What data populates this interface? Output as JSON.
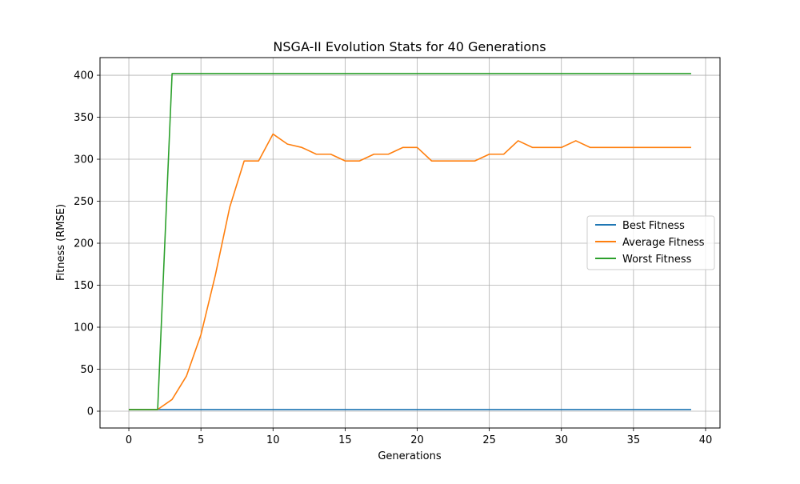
{
  "chart_data": {
    "type": "line",
    "title": "NSGA-II Evolution Stats for 40 Generations",
    "xlabel": "Generations",
    "ylabel": "Fitness (RMSE)",
    "xlim": [
      -2,
      41
    ],
    "ylim": [
      -20,
      421
    ],
    "xticks": [
      0,
      5,
      10,
      15,
      20,
      25,
      30,
      35,
      40
    ],
    "yticks": [
      0,
      50,
      100,
      150,
      200,
      250,
      300,
      350,
      400
    ],
    "grid": true,
    "legend_position": "center-right",
    "x": [
      0,
      1,
      2,
      3,
      4,
      5,
      6,
      7,
      8,
      9,
      10,
      11,
      12,
      13,
      14,
      15,
      16,
      17,
      18,
      19,
      20,
      21,
      22,
      23,
      24,
      25,
      26,
      27,
      28,
      29,
      30,
      31,
      32,
      33,
      34,
      35,
      36,
      37,
      38,
      39
    ],
    "series": [
      {
        "name": "Best Fitness",
        "color": "#1f77b4",
        "values": [
          2,
          2,
          2,
          2,
          2,
          2,
          2,
          2,
          2,
          2,
          2,
          2,
          2,
          2,
          2,
          2,
          2,
          2,
          2,
          2,
          2,
          2,
          2,
          2,
          2,
          2,
          2,
          2,
          2,
          2,
          2,
          2,
          2,
          2,
          2,
          2,
          2,
          2,
          2,
          2
        ]
      },
      {
        "name": "Average Fitness",
        "color": "#ff7f0e",
        "values": [
          2,
          2,
          2,
          14,
          42,
          91,
          162,
          243,
          298,
          298,
          330,
          318,
          314,
          306,
          306,
          298,
          298,
          306,
          306,
          314,
          314,
          298,
          298,
          298,
          298,
          306,
          306,
          322,
          314,
          314,
          314,
          322,
          314,
          314,
          314,
          314,
          314,
          314,
          314,
          314
        ]
      },
      {
        "name": "Worst Fitness",
        "color": "#2ca02c",
        "values": [
          2,
          2,
          2,
          402,
          402,
          402,
          402,
          402,
          402,
          402,
          402,
          402,
          402,
          402,
          402,
          402,
          402,
          402,
          402,
          402,
          402,
          402,
          402,
          402,
          402,
          402,
          402,
          402,
          402,
          402,
          402,
          402,
          402,
          402,
          402,
          402,
          402,
          402,
          402,
          402
        ]
      }
    ]
  }
}
